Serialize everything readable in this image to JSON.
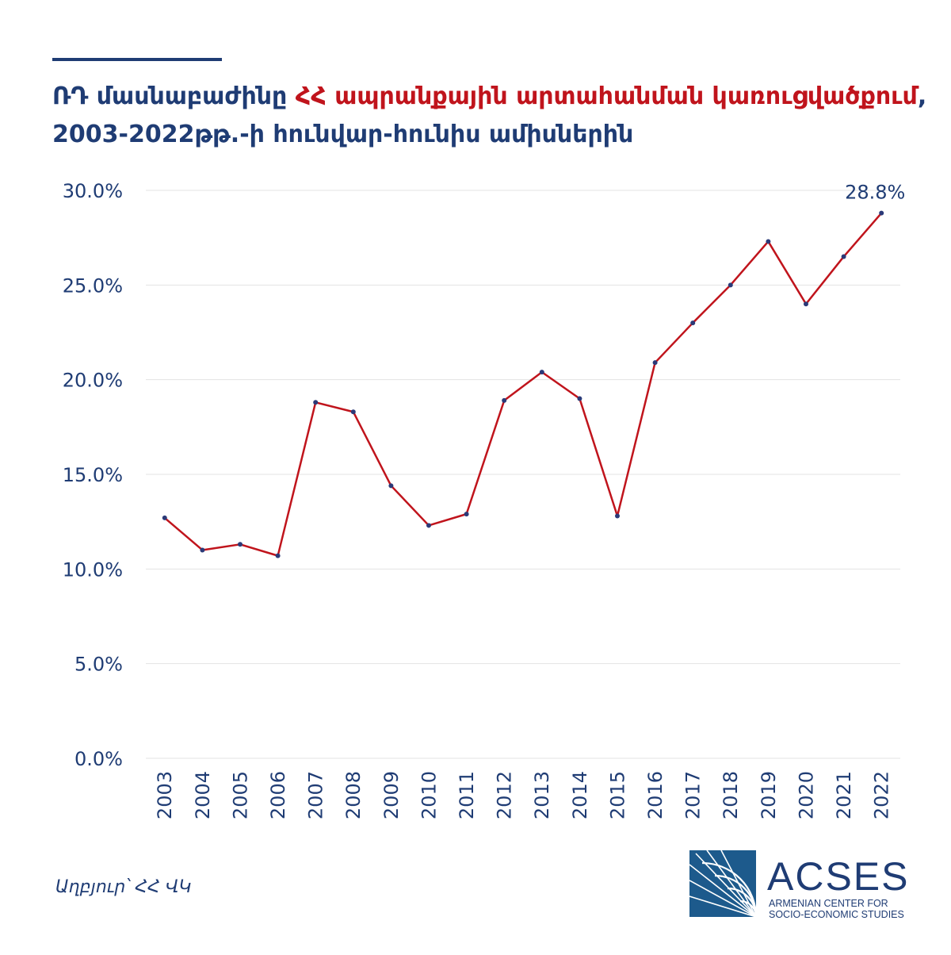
{
  "title": {
    "part1": "ՌԴ մասնաբաժինը ",
    "part2": "ՀՀ ապրանքային արտահանման կառուցվածքում",
    "part3": ", 2003-2022թթ.-ի հունվար-հունիս ամիսներին"
  },
  "source": "Աղբյուր՝ ՀՀ ՎԿ",
  "logo": {
    "name": "ACSES",
    "line1": "ARMENIAN CENTER FOR",
    "line2": "SOCIO-ECONOMIC STUDIES"
  },
  "colors": {
    "title_blue": "#1f3c74",
    "title_red": "#c0141c",
    "line": "#c0141c",
    "marker": "#2b3a78",
    "grid": "#e3e3e3",
    "axis_text": "#1f3c74"
  },
  "chart_data": {
    "type": "line",
    "title": "ՌԴ մասնաբաժինը ՀՀ ապրանքային արտահանման կառուցվածքում, 2003-2022թթ.-ի հունվար-հունիս ամիսներին",
    "x": [
      "2003",
      "2004",
      "2005",
      "2006",
      "2007",
      "2008",
      "2009",
      "2010",
      "2011",
      "2012",
      "2013",
      "2014",
      "2015",
      "2016",
      "2017",
      "2018",
      "2019",
      "2020",
      "2021",
      "2022"
    ],
    "series": [
      {
        "values": [
          12.7,
          11.0,
          11.3,
          10.7,
          18.8,
          18.3,
          14.4,
          12.3,
          12.9,
          18.9,
          20.4,
          19.0,
          12.8,
          20.9,
          23.0,
          25.0,
          27.3,
          24.0,
          26.5,
          28.8
        ]
      }
    ],
    "ylim": [
      0,
      30
    ],
    "y_ticks": [
      "0.0%",
      "5.0%",
      "10.0%",
      "15.0%",
      "20.0%",
      "25.0%",
      "30.0%"
    ],
    "data_labels": [
      {
        "x": "2022",
        "text": "28.8%"
      }
    ],
    "grid": true,
    "legend": "none"
  }
}
